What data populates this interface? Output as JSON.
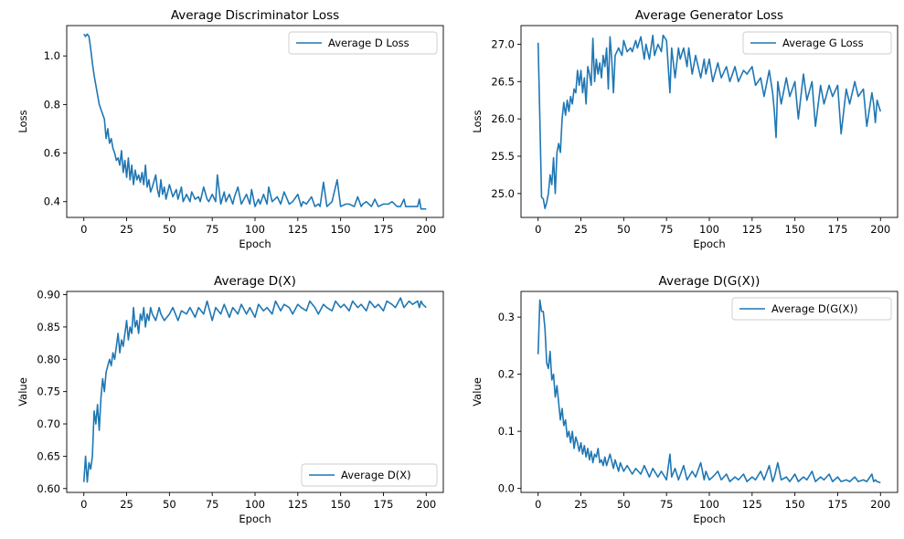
{
  "chart_data": [
    {
      "type": "line",
      "title": "Average Discriminator Loss",
      "xlabel": "Epoch",
      "ylabel": "Loss",
      "xlim": [
        -10,
        210
      ],
      "ylim": [
        0.335,
        1.125
      ],
      "xticks": [
        0,
        25,
        50,
        75,
        100,
        125,
        150,
        175,
        200
      ],
      "xtick_labels": [
        "0",
        "25",
        "50",
        "75",
        "100",
        "125",
        "150",
        "175",
        "200"
      ],
      "yticks": [
        0.4,
        0.6,
        0.8,
        1.0
      ],
      "ytick_labels": [
        "0.4",
        "0.6",
        "0.8",
        "1.0"
      ],
      "legend": "top-right",
      "color": "#1f77b4",
      "series": [
        {
          "name": "Average D Loss",
          "x": [
            0,
            1,
            2,
            3,
            4,
            5,
            6,
            7,
            8,
            9,
            10,
            12,
            13,
            14,
            15,
            16,
            17,
            18,
            19,
            20,
            21,
            22,
            23,
            24,
            25,
            26,
            27,
            28,
            29,
            30,
            31,
            32,
            33,
            34,
            35,
            36,
            37,
            38,
            39,
            40,
            42,
            43,
            44,
            45,
            46,
            47,
            48,
            50,
            52,
            54,
            55,
            57,
            58,
            60,
            62,
            63,
            65,
            67,
            68,
            70,
            72,
            73,
            75,
            77,
            78,
            80,
            82,
            83,
            85,
            87,
            88,
            90,
            92,
            95,
            97,
            98,
            100,
            102,
            103,
            105,
            107,
            108,
            110,
            113,
            115,
            117,
            120,
            122,
            125,
            127,
            128,
            130,
            133,
            135,
            137,
            138,
            140,
            142,
            145,
            148,
            150,
            153,
            155,
            158,
            160,
            162,
            163,
            165,
            168,
            170,
            172,
            175,
            178,
            180,
            183,
            185,
            187,
            188,
            190,
            193,
            195,
            196,
            197,
            198,
            200
          ],
          "values": [
            1.09,
            1.08,
            1.09,
            1.08,
            1.03,
            0.97,
            0.92,
            0.88,
            0.84,
            0.8,
            0.78,
            0.74,
            0.66,
            0.7,
            0.64,
            0.66,
            0.62,
            0.6,
            0.57,
            0.58,
            0.55,
            0.61,
            0.52,
            0.57,
            0.5,
            0.58,
            0.49,
            0.55,
            0.47,
            0.53,
            0.49,
            0.51,
            0.48,
            0.52,
            0.47,
            0.55,
            0.46,
            0.49,
            0.44,
            0.46,
            0.51,
            0.45,
            0.42,
            0.49,
            0.43,
            0.46,
            0.41,
            0.47,
            0.42,
            0.45,
            0.41,
            0.46,
            0.4,
            0.43,
            0.4,
            0.44,
            0.41,
            0.42,
            0.4,
            0.46,
            0.41,
            0.4,
            0.43,
            0.4,
            0.51,
            0.39,
            0.44,
            0.4,
            0.43,
            0.39,
            0.42,
            0.46,
            0.39,
            0.43,
            0.39,
            0.45,
            0.38,
            0.41,
            0.39,
            0.43,
            0.39,
            0.46,
            0.4,
            0.42,
            0.39,
            0.44,
            0.39,
            0.4,
            0.43,
            0.38,
            0.4,
            0.39,
            0.42,
            0.38,
            0.39,
            0.38,
            0.48,
            0.38,
            0.4,
            0.49,
            0.38,
            0.39,
            0.39,
            0.38,
            0.42,
            0.38,
            0.39,
            0.4,
            0.38,
            0.41,
            0.38,
            0.39,
            0.39,
            0.4,
            0.38,
            0.38,
            0.41,
            0.38,
            0.38,
            0.38,
            0.38,
            0.41,
            0.37,
            0.37,
            0.37
          ]
        }
      ]
    },
    {
      "type": "line",
      "title": "Average Generator Loss",
      "xlabel": "Epoch",
      "ylabel": "Loss",
      "xlim": [
        -10,
        210
      ],
      "ylim": [
        24.68,
        27.25
      ],
      "xticks": [
        0,
        25,
        50,
        75,
        100,
        125,
        150,
        175,
        200
      ],
      "xtick_labels": [
        "0",
        "25",
        "50",
        "75",
        "100",
        "125",
        "150",
        "175",
        "200"
      ],
      "yticks": [
        25.0,
        25.5,
        26.0,
        26.5,
        27.0
      ],
      "ytick_labels": [
        "25.0",
        "25.5",
        "26.0",
        "26.5",
        "27.0"
      ],
      "legend": "top-right",
      "color": "#1f77b4",
      "series": [
        {
          "name": "Average G Loss",
          "x": [
            0,
            1,
            2,
            3,
            4,
            5,
            6,
            7,
            8,
            9,
            10,
            11,
            12,
            13,
            14,
            15,
            16,
            17,
            18,
            19,
            20,
            21,
            22,
            23,
            24,
            25,
            26,
            27,
            28,
            29,
            30,
            31,
            32,
            33,
            34,
            35,
            36,
            37,
            38,
            39,
            40,
            41,
            42,
            43,
            44,
            45,
            47,
            49,
            50,
            52,
            54,
            55,
            57,
            58,
            60,
            62,
            63,
            65,
            67,
            68,
            70,
            72,
            73,
            75,
            77,
            78,
            80,
            82,
            83,
            85,
            87,
            88,
            90,
            92,
            95,
            97,
            98,
            100,
            102,
            105,
            107,
            110,
            112,
            115,
            117,
            120,
            122,
            125,
            127,
            130,
            132,
            135,
            137,
            138,
            139,
            140,
            142,
            145,
            147,
            150,
            152,
            155,
            157,
            160,
            162,
            165,
            167,
            170,
            172,
            175,
            177,
            180,
            182,
            185,
            187,
            190,
            192,
            195,
            196,
            197,
            198,
            200
          ],
          "values": [
            27.02,
            26.0,
            24.95,
            24.93,
            24.8,
            24.88,
            25.0,
            25.25,
            25.12,
            25.48,
            25.0,
            25.55,
            25.67,
            25.55,
            26.0,
            26.22,
            26.05,
            26.25,
            26.1,
            26.3,
            26.2,
            26.4,
            26.35,
            26.65,
            26.45,
            26.65,
            26.35,
            26.55,
            26.2,
            26.7,
            26.6,
            26.45,
            27.08,
            26.5,
            26.8,
            26.6,
            26.75,
            26.55,
            26.85,
            26.7,
            26.95,
            26.4,
            27.1,
            26.8,
            26.35,
            26.85,
            26.95,
            26.85,
            27.05,
            26.9,
            26.95,
            26.9,
            27.05,
            26.95,
            27.1,
            26.8,
            27.0,
            26.8,
            27.12,
            26.85,
            27.0,
            26.9,
            27.12,
            27.05,
            26.35,
            26.95,
            26.55,
            26.95,
            26.8,
            26.95,
            26.7,
            26.95,
            26.6,
            26.85,
            26.55,
            26.8,
            26.6,
            26.8,
            26.5,
            26.75,
            26.55,
            26.7,
            26.5,
            26.7,
            26.5,
            26.65,
            26.6,
            26.7,
            26.45,
            26.55,
            26.3,
            26.65,
            26.35,
            26.1,
            25.75,
            26.5,
            26.2,
            26.55,
            26.3,
            26.5,
            26.0,
            26.6,
            26.25,
            26.5,
            25.9,
            26.45,
            26.2,
            26.45,
            26.3,
            26.45,
            25.8,
            26.4,
            26.2,
            26.5,
            26.3,
            26.4,
            25.9,
            26.35,
            26.2,
            25.95,
            26.25,
            26.1
          ]
        }
      ]
    },
    {
      "type": "line",
      "title": "Average D(X)",
      "xlabel": "Epoch",
      "ylabel": "Value",
      "xlim": [
        -10,
        210
      ],
      "ylim": [
        0.594,
        0.905
      ],
      "xticks": [
        0,
        25,
        50,
        75,
        100,
        125,
        150,
        175,
        200
      ],
      "xtick_labels": [
        "0",
        "25",
        "50",
        "75",
        "100",
        "125",
        "150",
        "175",
        "200"
      ],
      "yticks": [
        0.6,
        0.65,
        0.7,
        0.75,
        0.8,
        0.85,
        0.9
      ],
      "ytick_labels": [
        "0.60",
        "0.65",
        "0.70",
        "0.75",
        "0.80",
        "0.85",
        "0.90"
      ],
      "legend": "bottom-right",
      "color": "#1f77b4",
      "series": [
        {
          "name": "Average D(X)",
          "x": [
            0,
            1,
            2,
            3,
            4,
            5,
            6,
            7,
            8,
            9,
            10,
            11,
            12,
            13,
            14,
            15,
            16,
            17,
            18,
            19,
            20,
            21,
            22,
            23,
            24,
            25,
            26,
            27,
            28,
            29,
            30,
            31,
            32,
            33,
            34,
            35,
            36,
            37,
            38,
            39,
            40,
            42,
            44,
            45,
            47,
            50,
            52,
            55,
            57,
            60,
            62,
            65,
            67,
            70,
            72,
            75,
            77,
            80,
            82,
            85,
            87,
            90,
            92,
            95,
            97,
            100,
            102,
            105,
            107,
            110,
            112,
            115,
            117,
            120,
            122,
            125,
            127,
            130,
            132,
            135,
            137,
            140,
            142,
            145,
            147,
            150,
            152,
            155,
            157,
            160,
            162,
            165,
            167,
            170,
            172,
            175,
            177,
            180,
            182,
            185,
            187,
            190,
            192,
            195,
            196,
            197,
            198,
            200
          ],
          "values": [
            0.61,
            0.65,
            0.61,
            0.64,
            0.63,
            0.65,
            0.72,
            0.7,
            0.73,
            0.69,
            0.74,
            0.77,
            0.75,
            0.78,
            0.79,
            0.8,
            0.79,
            0.81,
            0.8,
            0.82,
            0.84,
            0.81,
            0.83,
            0.82,
            0.84,
            0.86,
            0.83,
            0.85,
            0.84,
            0.88,
            0.85,
            0.86,
            0.84,
            0.87,
            0.86,
            0.88,
            0.85,
            0.87,
            0.86,
            0.88,
            0.87,
            0.86,
            0.88,
            0.87,
            0.86,
            0.87,
            0.88,
            0.86,
            0.875,
            0.87,
            0.88,
            0.865,
            0.88,
            0.87,
            0.89,
            0.86,
            0.88,
            0.87,
            0.885,
            0.865,
            0.88,
            0.87,
            0.885,
            0.87,
            0.88,
            0.865,
            0.885,
            0.875,
            0.88,
            0.87,
            0.89,
            0.875,
            0.885,
            0.88,
            0.87,
            0.885,
            0.88,
            0.875,
            0.89,
            0.88,
            0.87,
            0.885,
            0.88,
            0.875,
            0.89,
            0.88,
            0.885,
            0.875,
            0.89,
            0.88,
            0.885,
            0.875,
            0.89,
            0.88,
            0.885,
            0.875,
            0.89,
            0.885,
            0.88,
            0.895,
            0.88,
            0.89,
            0.885,
            0.89,
            0.88,
            0.89,
            0.885,
            0.88
          ]
        }
      ]
    },
    {
      "type": "line",
      "title": "Average D(G(X))",
      "xlabel": "Epoch",
      "ylabel": "Value",
      "xlim": [
        -10,
        210
      ],
      "ylim": [
        -0.007,
        0.345
      ],
      "xticks": [
        0,
        25,
        50,
        75,
        100,
        125,
        150,
        175,
        200
      ],
      "xtick_labels": [
        "0",
        "25",
        "50",
        "75",
        "100",
        "125",
        "150",
        "175",
        "200"
      ],
      "yticks": [
        0.0,
        0.1,
        0.2,
        0.3
      ],
      "ytick_labels": [
        "0.0",
        "0.1",
        "0.2",
        "0.3"
      ],
      "legend": "top-right",
      "color": "#1f77b4",
      "series": [
        {
          "name": "Average D(G(X))",
          "x": [
            0,
            1,
            2,
            3,
            4,
            5,
            6,
            7,
            8,
            9,
            10,
            11,
            12,
            13,
            14,
            15,
            16,
            17,
            18,
            19,
            20,
            21,
            22,
            23,
            24,
            25,
            26,
            27,
            28,
            29,
            30,
            31,
            32,
            33,
            34,
            35,
            36,
            37,
            38,
            39,
            40,
            42,
            44,
            45,
            47,
            48,
            50,
            52,
            55,
            57,
            60,
            62,
            65,
            67,
            70,
            72,
            75,
            77,
            78,
            80,
            82,
            85,
            87,
            90,
            92,
            95,
            97,
            98,
            100,
            102,
            105,
            107,
            110,
            112,
            115,
            117,
            120,
            122,
            125,
            127,
            130,
            132,
            135,
            137,
            138,
            140,
            142,
            145,
            147,
            150,
            152,
            155,
            157,
            160,
            162,
            165,
            167,
            170,
            172,
            175,
            177,
            180,
            182,
            185,
            187,
            190,
            192,
            195,
            196,
            197,
            198,
            200
          ],
          "values": [
            0.235,
            0.33,
            0.31,
            0.31,
            0.28,
            0.22,
            0.21,
            0.24,
            0.19,
            0.2,
            0.16,
            0.18,
            0.15,
            0.12,
            0.14,
            0.11,
            0.12,
            0.09,
            0.1,
            0.08,
            0.1,
            0.07,
            0.09,
            0.08,
            0.065,
            0.08,
            0.06,
            0.075,
            0.055,
            0.07,
            0.05,
            0.065,
            0.045,
            0.06,
            0.055,
            0.07,
            0.045,
            0.05,
            0.04,
            0.055,
            0.04,
            0.06,
            0.035,
            0.05,
            0.03,
            0.045,
            0.03,
            0.04,
            0.025,
            0.035,
            0.025,
            0.04,
            0.02,
            0.035,
            0.02,
            0.03,
            0.015,
            0.06,
            0.02,
            0.035,
            0.015,
            0.04,
            0.015,
            0.03,
            0.02,
            0.045,
            0.015,
            0.03,
            0.015,
            0.02,
            0.03,
            0.015,
            0.025,
            0.012,
            0.02,
            0.015,
            0.025,
            0.012,
            0.02,
            0.015,
            0.03,
            0.015,
            0.04,
            0.012,
            0.02,
            0.045,
            0.015,
            0.02,
            0.012,
            0.025,
            0.012,
            0.02,
            0.015,
            0.03,
            0.012,
            0.02,
            0.015,
            0.025,
            0.012,
            0.02,
            0.012,
            0.015,
            0.012,
            0.02,
            0.012,
            0.015,
            0.012,
            0.025,
            0.012,
            0.015,
            0.012,
            0.01
          ]
        }
      ]
    }
  ]
}
